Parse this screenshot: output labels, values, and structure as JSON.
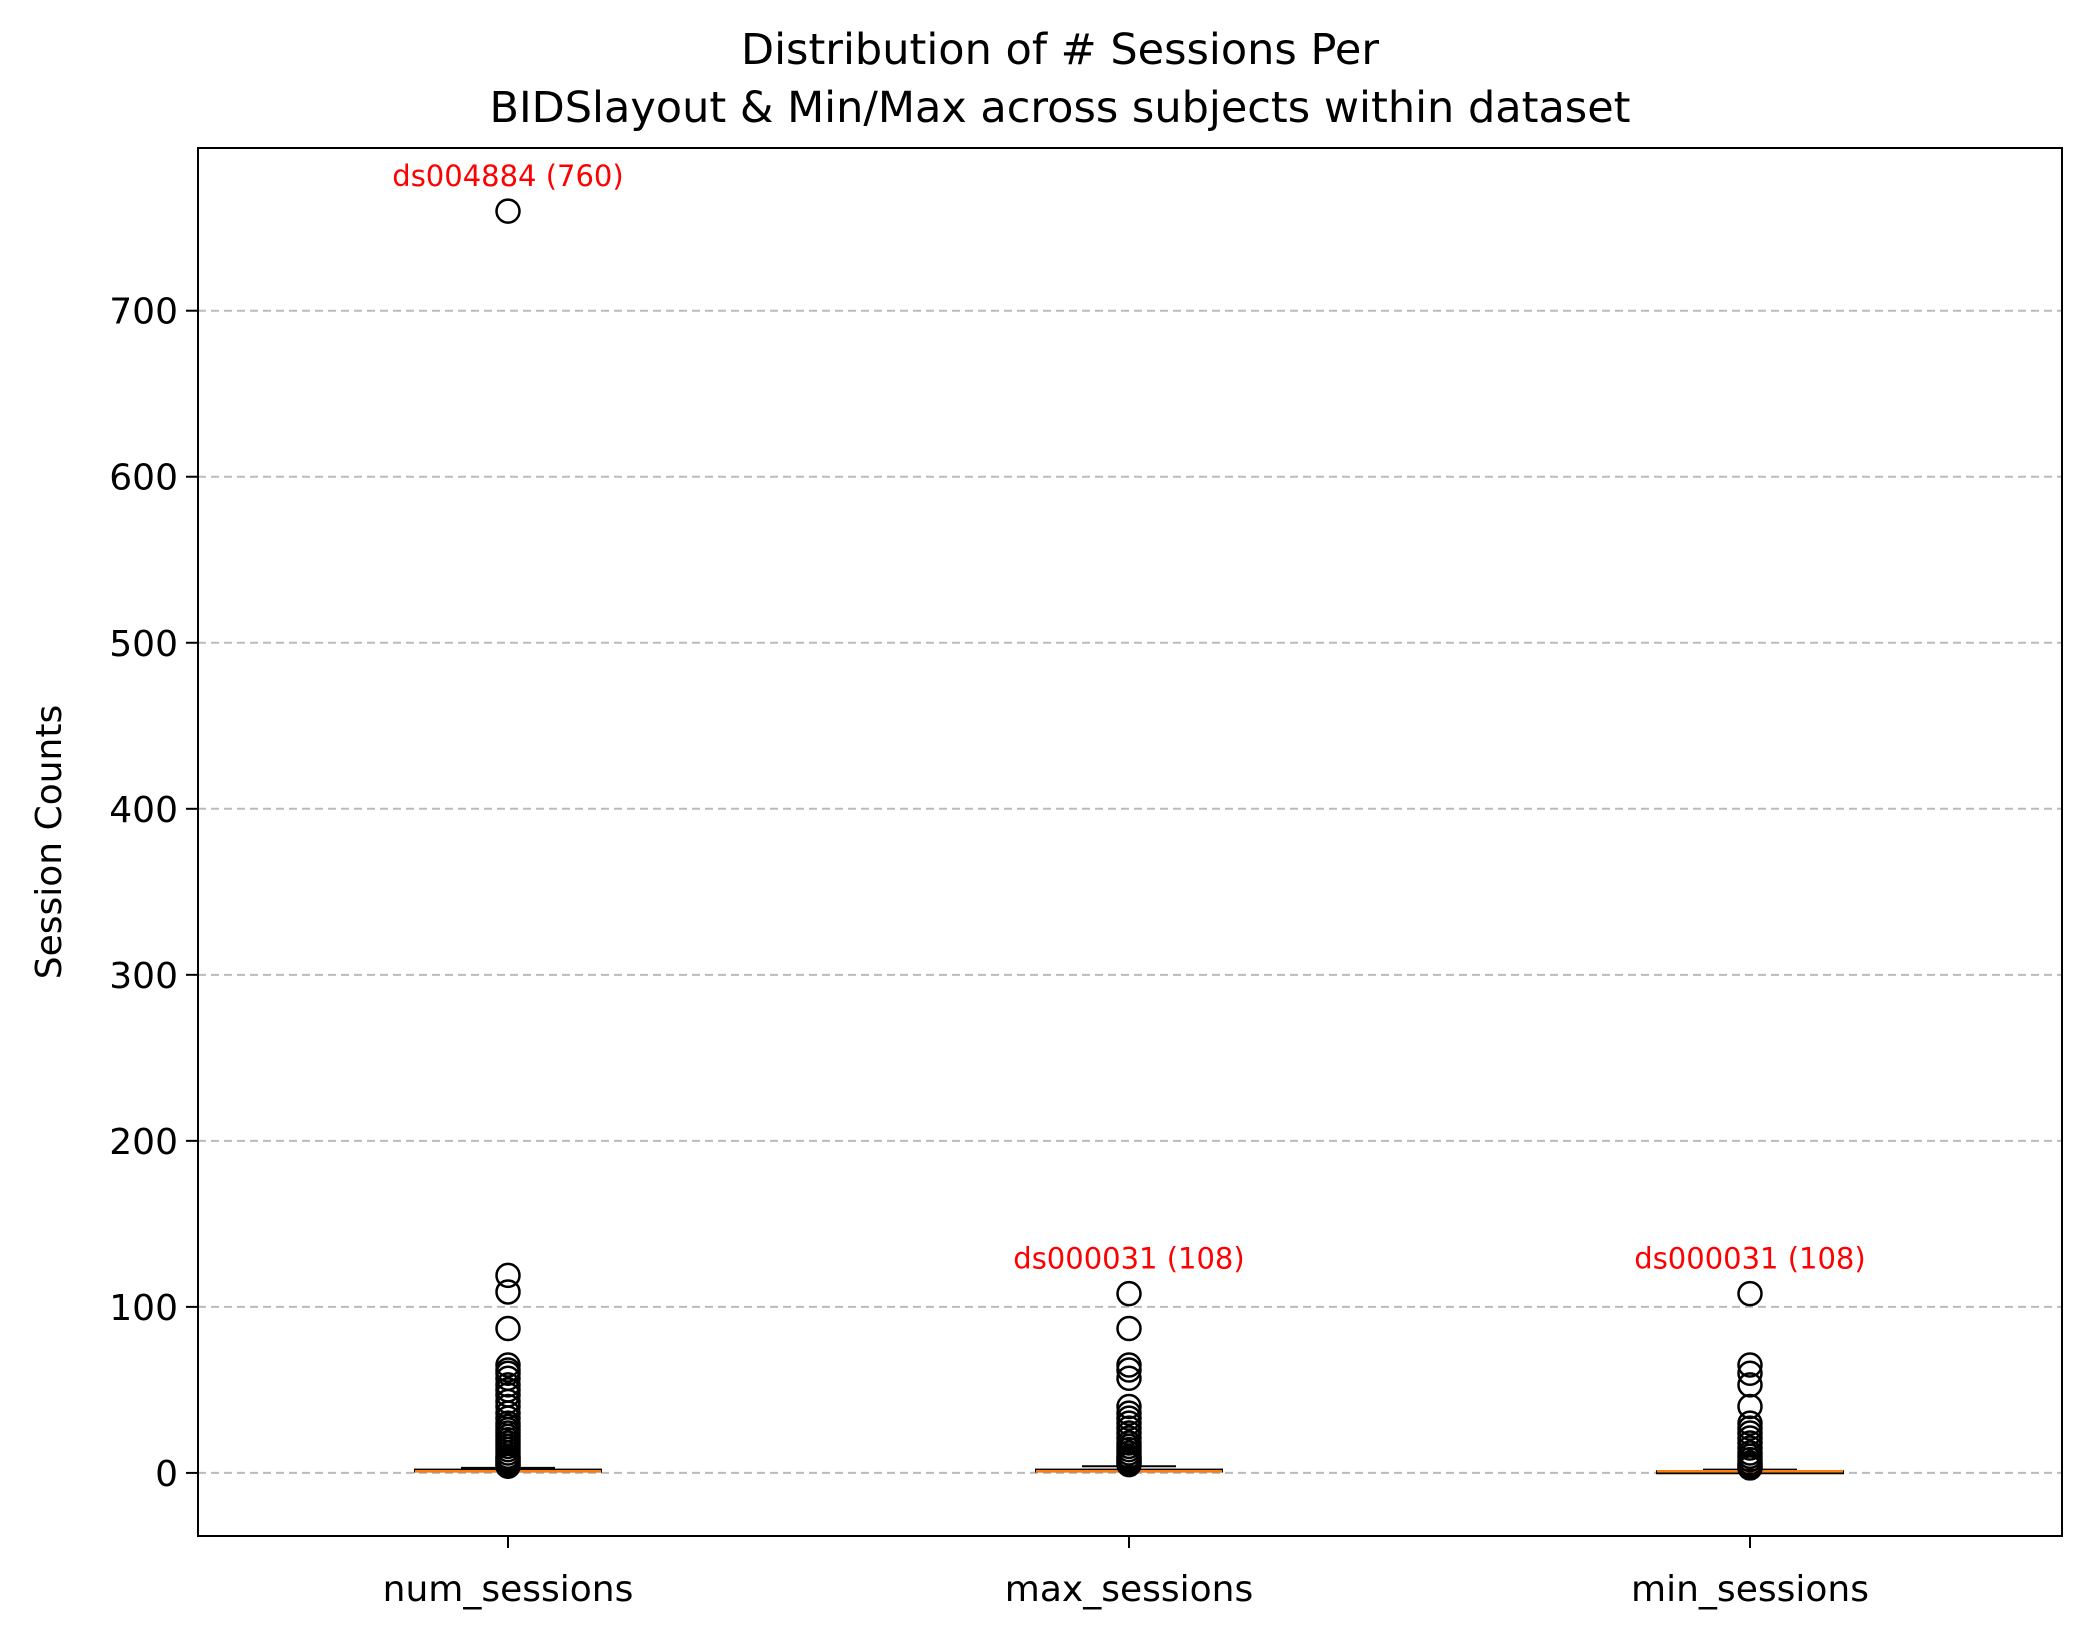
{
  "chart_data": {
    "type": "box",
    "title_lines": [
      "Distribution of # Sessions Per",
      "BIDSlayout & Min/Max across subjects within dataset"
    ],
    "xlabel": "",
    "ylabel": "Session Counts",
    "ylim": [
      -38,
      798
    ],
    "yticks": [
      0,
      100,
      200,
      300,
      400,
      500,
      600,
      700
    ],
    "grid": {
      "axis": "y",
      "style": "dashed",
      "color": "#bbbbbb"
    },
    "categories": [
      "num_sessions",
      "max_sessions",
      "min_sessions"
    ],
    "colors": {
      "median": "#ff7f0e",
      "box": "#000000",
      "outlier": "#000000",
      "annotation": "#ff0000"
    },
    "series": [
      {
        "category": "num_sessions",
        "whislo": 1,
        "q1": 1,
        "median": 1,
        "q3": 2,
        "whishi": 3,
        "outliers": [
          760,
          119,
          109,
          87,
          65,
          62,
          60,
          57,
          53,
          50,
          47,
          43,
          40,
          36,
          33,
          30,
          28,
          26,
          24,
          22,
          20,
          18,
          16,
          14,
          12,
          10,
          9,
          8,
          7,
          6,
          5,
          4
        ]
      },
      {
        "category": "max_sessions",
        "whislo": 1,
        "q1": 1,
        "median": 1,
        "q3": 2,
        "whishi": 4,
        "outliers": [
          108,
          87,
          65,
          62,
          57,
          40,
          36,
          33,
          30,
          27,
          24,
          21,
          18,
          16,
          14,
          12,
          10,
          9,
          8,
          7,
          6,
          5
        ]
      },
      {
        "category": "min_sessions",
        "whislo": 1,
        "q1": 1,
        "median": 1,
        "q3": 1,
        "whishi": 2,
        "outliers": [
          108,
          65,
          60,
          53,
          40,
          30,
          27,
          24,
          21,
          18,
          15,
          12,
          10,
          8,
          6,
          5,
          4,
          3
        ]
      }
    ],
    "annotations": [
      {
        "category": "num_sessions",
        "y": 760,
        "text": "ds004884 (760)"
      },
      {
        "category": "max_sessions",
        "y": 108,
        "text": "ds000031 (108)"
      },
      {
        "category": "min_sessions",
        "y": 108,
        "text": "ds000031 (108)"
      }
    ]
  }
}
